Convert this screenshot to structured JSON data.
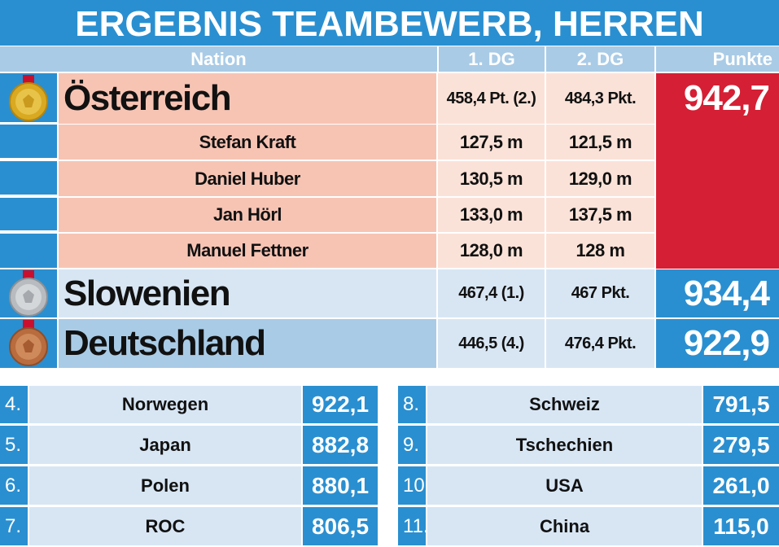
{
  "title": "ERGEBNIS TEAMBEWERB, HERREN",
  "header": {
    "nation": "Nation",
    "dg1": "1. DG",
    "dg2": "2. DG",
    "punkte": "Punkte"
  },
  "colors": {
    "blue": "#2a8fd0",
    "light_blue": "#a9cbe6",
    "salmon": "#f7c4b4",
    "pale_salmon": "#fbe2d8",
    "red": "#d51f34",
    "pale_blue": "#d8e6f4"
  },
  "podium": [
    {
      "medal": "gold-medal-icon",
      "nation": "Österreich",
      "dg1": "458,4 Pt. (2.)",
      "dg2": "484,3 Pkt.",
      "punkte": "942,7",
      "jumpers": [
        {
          "name": "Stefan Kraft",
          "dg1": "127,5 m",
          "dg2": "121,5 m"
        },
        {
          "name": "Daniel Huber",
          "dg1": "130,5 m",
          "dg2": "129,0 m"
        },
        {
          "name": "Jan Hörl",
          "dg1": "133,0 m",
          "dg2": "137,5 m"
        },
        {
          "name": "Manuel Fettner",
          "dg1": "128,0 m",
          "dg2": "128 m"
        }
      ]
    },
    {
      "medal": "silver-medal-icon",
      "nation": "Slowenien",
      "dg1": "467,4 (1.)",
      "dg2": "467 Pkt.",
      "punkte": "934,4"
    },
    {
      "medal": "bronze-medal-icon",
      "nation": "Deutschland",
      "dg1": "446,5 (4.)",
      "dg2": "476,4 Pkt.",
      "punkte": "922,9"
    }
  ],
  "rest_left": [
    {
      "rank": "4.",
      "nation": "Norwegen",
      "punkte": "922,1"
    },
    {
      "rank": "5.",
      "nation": "Japan",
      "punkte": "882,8"
    },
    {
      "rank": "6.",
      "nation": "Polen",
      "punkte": "880,1"
    },
    {
      "rank": "7.",
      "nation": "ROC",
      "punkte": "806,5"
    }
  ],
  "rest_right": [
    {
      "rank": "8.",
      "nation": "Schweiz",
      "punkte": "791,5"
    },
    {
      "rank": "9.",
      "nation": "Tschechien",
      "punkte": "279,5"
    },
    {
      "rank": "10.",
      "nation": "USA",
      "punkte": "261,0"
    },
    {
      "rank": "11.",
      "nation": "China",
      "punkte": "115,0"
    }
  ]
}
